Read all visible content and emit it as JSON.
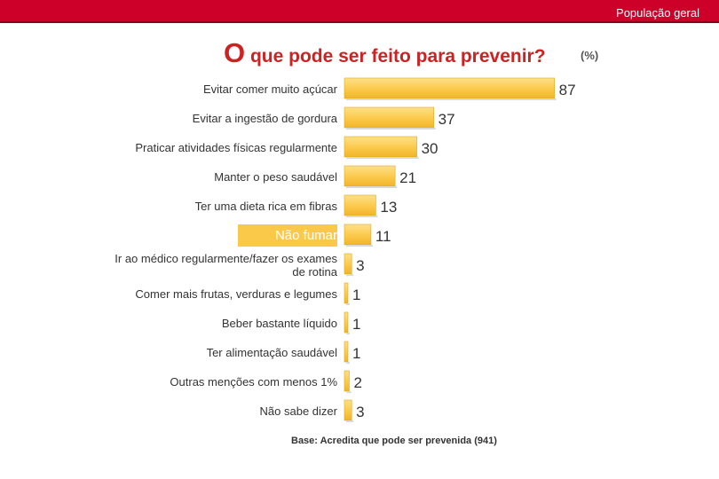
{
  "header": {
    "tag": "População geral"
  },
  "chart_data": {
    "type": "bar",
    "orientation": "horizontal",
    "title_first": "O",
    "title_rest": " que pode ser feito para prevenir?",
    "unit": "(%)",
    "highlight_index": 5,
    "categories": [
      [
        "Evitar comer muito açúcar"
      ],
      [
        "Evitar a ingestão de gordura"
      ],
      [
        "Praticar atividades físicas regularmente"
      ],
      [
        "Manter o peso saudável"
      ],
      [
        "Ter uma dieta rica em fibras"
      ],
      [
        "Não fumar"
      ],
      [
        "Ir ao médico regularmente/fazer os exames",
        "de rotina"
      ],
      [
        "Comer mais frutas, verduras e legumes"
      ],
      [
        "Beber bastante líquido"
      ],
      [
        "Ter alimentação saudável"
      ],
      [
        "Outras menções com menos 1%"
      ],
      [
        "Não sabe dizer"
      ]
    ],
    "values": [
      87,
      37,
      30,
      21,
      13,
      11,
      3,
      1,
      1,
      1,
      2,
      3
    ],
    "colors": {
      "bar": "#fbc94a",
      "bar_edge": "#e0a81c",
      "highlight": "#fbc94a",
      "text": "#333333"
    },
    "footnote": "Base: Acredita que pode ser prevenida (941)"
  }
}
